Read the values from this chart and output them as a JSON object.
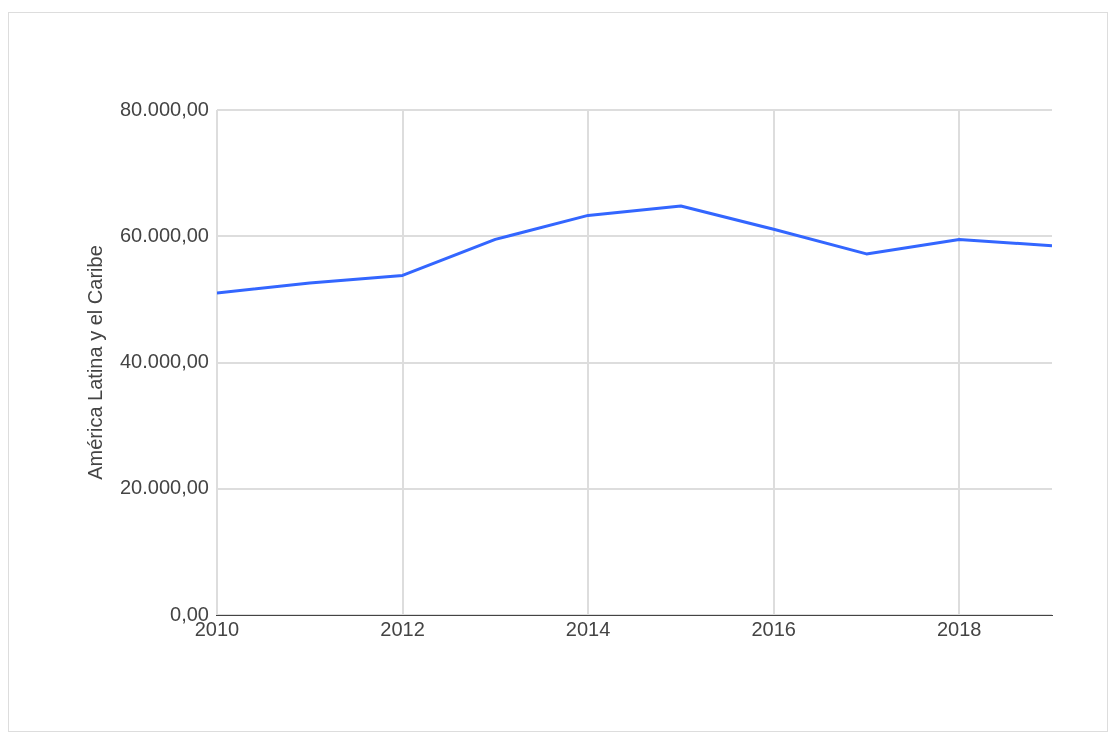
{
  "chart_data": {
    "type": "line",
    "ylabel": "América Latina y el Caribe",
    "x": [
      2010,
      2011,
      2012,
      2013,
      2014,
      2015,
      2016,
      2017,
      2018,
      2019
    ],
    "series": [
      {
        "color": "#3366ff",
        "values": [
          51000,
          52600,
          53800,
          59500,
          63300,
          64800,
          61100,
          57200,
          59500,
          58500
        ]
      }
    ],
    "xlim": [
      2010,
      2019
    ],
    "xticks": [
      2010,
      2012,
      2014,
      2016,
      2018
    ],
    "ylim": [
      0,
      80000
    ],
    "yticks": [
      {
        "value": 0,
        "label": "0,00"
      },
      {
        "value": 20000,
        "label": "20.000,00"
      },
      {
        "value": 40000,
        "label": "40.000,00"
      },
      {
        "value": 60000,
        "label": "60.000,00"
      },
      {
        "value": 80000,
        "label": "80.000,00"
      }
    ],
    "grid": true,
    "legend": false,
    "marker": "none",
    "line_style": "solid"
  }
}
